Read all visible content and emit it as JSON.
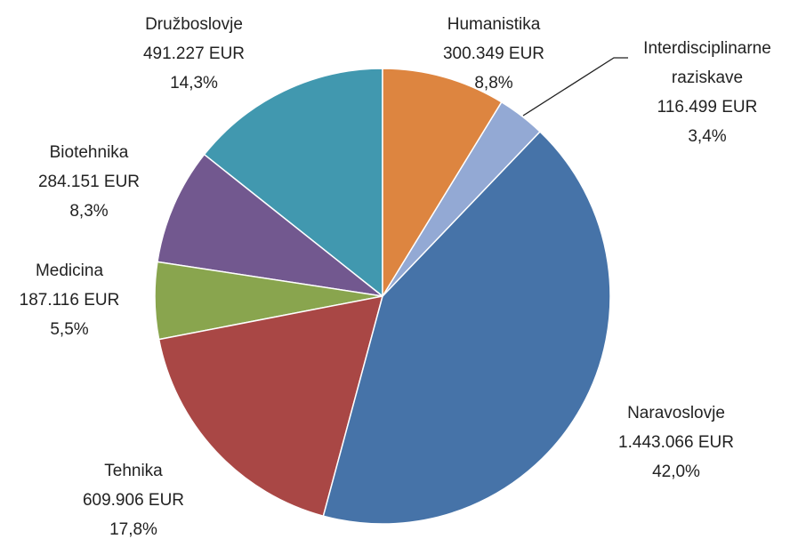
{
  "chart_data": {
    "type": "pie",
    "categories": [
      "Humanistika",
      "Interdisciplinarne raziskave",
      "Naravoslovje",
      "Tehnika",
      "Medicina",
      "Biotehnika",
      "Družboslovje"
    ],
    "values": [
      300349,
      116499,
      1443066,
      609906,
      187116,
      284151,
      491227
    ],
    "value_labels": [
      "300.349 EUR",
      "116.499 EUR",
      "1.443.066 EUR",
      "609.906 EUR",
      "187.116 EUR",
      "284.151 EUR",
      "491.227 EUR"
    ],
    "percentages": [
      8.8,
      3.4,
      42.0,
      17.8,
      5.5,
      8.3,
      14.3
    ],
    "percentage_labels": [
      "8,8%",
      "3,4%",
      "42,0%",
      "17,8%",
      "5,5%",
      "8,3%",
      "14,3%"
    ],
    "colors": [
      "#dd8540",
      "#93a9d4",
      "#4673a8",
      "#a94745",
      "#89a54e",
      "#72588f",
      "#4198af"
    ]
  }
}
